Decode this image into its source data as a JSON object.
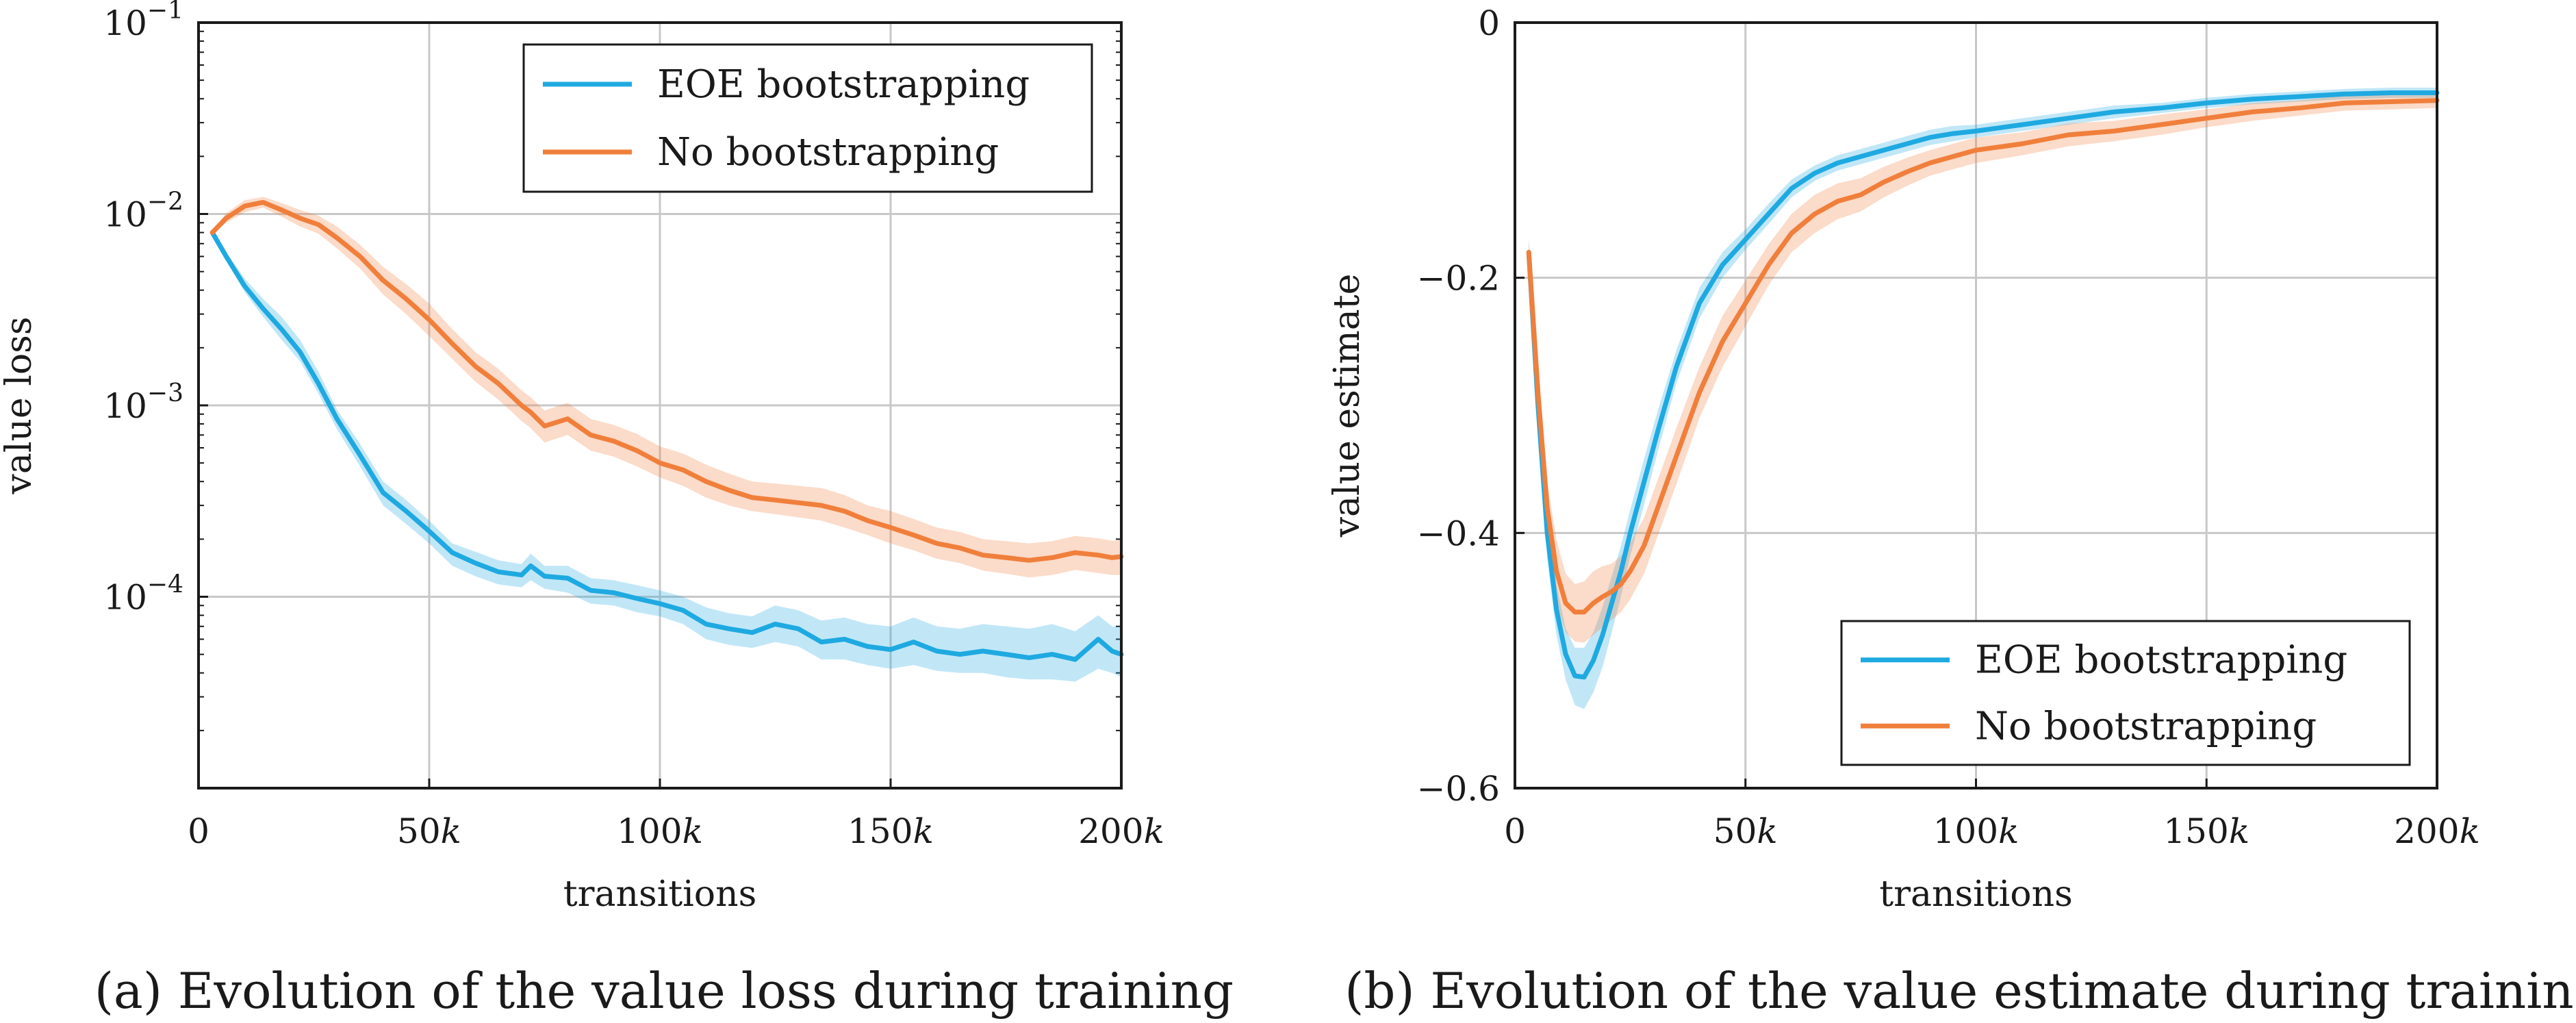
{
  "chart_data": [
    {
      "type": "line",
      "panel": "a",
      "caption": "(a) Evolution of the value loss during training",
      "xlabel": "transitions",
      "ylabel": "value loss",
      "yscale": "log",
      "xlim": [
        0,
        200000
      ],
      "ylim_exp": [
        -5,
        -1
      ],
      "x_ticks": [
        {
          "value": 0,
          "base": "0",
          "suffix": ""
        },
        {
          "value": 50000,
          "base": "50",
          "suffix": "k"
        },
        {
          "value": 100000,
          "base": "100",
          "suffix": "k"
        },
        {
          "value": 150000,
          "base": "150",
          "suffix": "k"
        },
        {
          "value": 200000,
          "base": "200",
          "suffix": "k"
        }
      ],
      "y_ticks": [
        {
          "exp": -1,
          "base": "10",
          "sup": "−1"
        },
        {
          "exp": -2,
          "base": "10",
          "sup": "−2"
        },
        {
          "exp": -3,
          "base": "10",
          "sup": "−3"
        },
        {
          "exp": -4,
          "base": "10",
          "sup": "−4"
        }
      ],
      "grid": true,
      "legend_position": "top-right",
      "x": [
        3000,
        6000,
        10000,
        14000,
        18000,
        22000,
        26000,
        30000,
        35000,
        40000,
        45000,
        50000,
        55000,
        60000,
        65000,
        70000,
        72000,
        75000,
        80000,
        85000,
        90000,
        95000,
        100000,
        105000,
        110000,
        115000,
        120000,
        125000,
        130000,
        135000,
        140000,
        145000,
        150000,
        155000,
        160000,
        165000,
        170000,
        175000,
        180000,
        185000,
        190000,
        195000,
        198000,
        200000
      ],
      "series": [
        {
          "name": "EOE bootstrapping",
          "color": "#1fa9e1",
          "values": [
            0.008,
            0.006,
            0.0042,
            0.0032,
            0.0025,
            0.0019,
            0.0013,
            0.00085,
            0.00055,
            0.00035,
            0.00028,
            0.00022,
            0.00017,
            0.00015,
            0.000135,
            0.00013,
            0.000145,
            0.000128,
            0.000125,
            0.000108,
            0.000105,
            9.8e-05,
            9.2e-05,
            8.5e-05,
            7.2e-05,
            6.8e-05,
            6.5e-05,
            7.2e-05,
            6.8e-05,
            5.8e-05,
            6e-05,
            5.5e-05,
            5.3e-05,
            5.8e-05,
            5.2e-05,
            5e-05,
            5.2e-05,
            5e-05,
            4.8e-05,
            5e-05,
            4.7e-05,
            6e-05,
            5.2e-05,
            5e-05
          ],
          "lower": [
            0.0078,
            0.0057,
            0.0039,
            0.0029,
            0.0022,
            0.0017,
            0.00115,
            0.00075,
            0.00048,
            0.0003,
            0.00024,
            0.00019,
            0.000145,
            0.000128,
            0.000116,
            0.000112,
            0.000122,
            0.00011,
            0.000105,
            9.2e-05,
            9e-05,
            8.3e-05,
            7.9e-05,
            7.2e-05,
            6e-05,
            5.6e-05,
            5.4e-05,
            5.8e-05,
            5.5e-05,
            4.7e-05,
            4.7e-05,
            4.4e-05,
            4.2e-05,
            4.4e-05,
            4.1e-05,
            4e-05,
            4e-05,
            3.8e-05,
            3.7e-05,
            3.7e-05,
            3.6e-05,
            4.2e-05,
            4e-05,
            3.8e-05
          ],
          "upper": [
            0.0082,
            0.0063,
            0.0046,
            0.0036,
            0.0029,
            0.0022,
            0.0015,
            0.00095,
            0.00063,
            0.0004,
            0.00032,
            0.00025,
            0.00019,
            0.000172,
            0.000155,
            0.000148,
            0.000168,
            0.000145,
            0.000145,
            0.000125,
            0.000122,
            0.000115,
            0.000108,
            0.0001,
            8.8e-05,
            8.2e-05,
            7.9e-05,
            9e-05,
            8.5e-05,
            7.5e-05,
            7.8e-05,
            7.2e-05,
            7e-05,
            7.8e-05,
            7e-05,
            6.8e-05,
            7.2e-05,
            7e-05,
            6.8e-05,
            7.2e-05,
            6.6e-05,
            8e-05,
            7e-05,
            7e-05
          ]
        },
        {
          "name": "No bootstrapping",
          "color": "#f07f3c",
          "values": [
            0.008,
            0.0095,
            0.011,
            0.0115,
            0.0105,
            0.0095,
            0.0088,
            0.0075,
            0.006,
            0.0045,
            0.0036,
            0.0028,
            0.0021,
            0.0016,
            0.0013,
            0.001,
            0.00092,
            0.00078,
            0.00085,
            0.0007,
            0.00065,
            0.00058,
            0.0005,
            0.00046,
            0.0004,
            0.00036,
            0.00033,
            0.00032,
            0.00031,
            0.0003,
            0.00028,
            0.00025,
            0.00023,
            0.00021,
            0.00019,
            0.00018,
            0.000165,
            0.00016,
            0.000155,
            0.00016,
            0.00017,
            0.000165,
            0.00016,
            0.000162
          ],
          "lower": [
            0.0078,
            0.009,
            0.0102,
            0.0108,
            0.0097,
            0.0086,
            0.0079,
            0.0066,
            0.0052,
            0.0038,
            0.003,
            0.0023,
            0.00175,
            0.00133,
            0.00107,
            0.00083,
            0.00076,
            0.00064,
            0.0007,
            0.00058,
            0.00054,
            0.00048,
            0.00042,
            0.00038,
            0.00033,
            0.0003,
            0.00028,
            0.00027,
            0.00026,
            0.00025,
            0.00023,
            0.00021,
            0.00019,
            0.000175,
            0.000158,
            0.00015,
            0.000137,
            0.000132,
            0.000126,
            0.00013,
            0.000138,
            0.000133,
            0.00013,
            0.00013
          ],
          "upper": [
            0.0082,
            0.0101,
            0.0118,
            0.0123,
            0.0114,
            0.0105,
            0.0098,
            0.0086,
            0.0069,
            0.0053,
            0.0043,
            0.0034,
            0.0025,
            0.0019,
            0.00155,
            0.0012,
            0.0011,
            0.00094,
            0.00103,
            0.00085,
            0.00079,
            0.00071,
            0.00061,
            0.00056,
            0.00049,
            0.00044,
            0.0004,
            0.00039,
            0.00038,
            0.00037,
            0.00034,
            0.0003,
            0.00028,
            0.000255,
            0.00023,
            0.000218,
            0.0002,
            0.000195,
            0.00019,
            0.000195,
            0.000208,
            0.000202,
            0.000196,
            0.000198
          ]
        }
      ]
    },
    {
      "type": "line",
      "panel": "b",
      "caption": "(b) Evolution of the value estimate during training",
      "xlabel": "transitions",
      "ylabel": "value estimate",
      "yscale": "linear",
      "xlim": [
        0,
        200000
      ],
      "ylim": [
        -0.6,
        0
      ],
      "x_ticks": [
        {
          "value": 0,
          "base": "0",
          "suffix": ""
        },
        {
          "value": 50000,
          "base": "50",
          "suffix": "k"
        },
        {
          "value": 100000,
          "base": "100",
          "suffix": "k"
        },
        {
          "value": 150000,
          "base": "150",
          "suffix": "k"
        },
        {
          "value": 200000,
          "base": "200",
          "suffix": "k"
        }
      ],
      "y_ticks": [
        {
          "value": 0,
          "label": "0"
        },
        {
          "value": -0.2,
          "label": "−0.2"
        },
        {
          "value": -0.4,
          "label": "−0.4"
        },
        {
          "value": -0.6,
          "label": "−0.6"
        }
      ],
      "grid": true,
      "legend_position": "bottom-right",
      "x": [
        3000,
        5000,
        7000,
        9000,
        11000,
        13000,
        15000,
        17000,
        19000,
        21000,
        23000,
        25000,
        28000,
        31000,
        35000,
        40000,
        45000,
        50000,
        55000,
        60000,
        65000,
        70000,
        75000,
        80000,
        85000,
        90000,
        95000,
        100000,
        110000,
        120000,
        130000,
        140000,
        150000,
        160000,
        170000,
        180000,
        190000,
        200000
      ],
      "series": [
        {
          "name": "EOE bootstrapping",
          "color": "#1fa9e1",
          "values": [
            -0.18,
            -0.3,
            -0.4,
            -0.46,
            -0.495,
            -0.512,
            -0.513,
            -0.5,
            -0.48,
            -0.455,
            -0.43,
            -0.4,
            -0.36,
            -0.32,
            -0.27,
            -0.22,
            -0.19,
            -0.17,
            -0.15,
            -0.13,
            -0.118,
            -0.11,
            -0.105,
            -0.1,
            -0.095,
            -0.09,
            -0.087,
            -0.085,
            -0.08,
            -0.075,
            -0.07,
            -0.067,
            -0.063,
            -0.06,
            -0.058,
            -0.056,
            -0.055,
            -0.055
          ],
          "lower": [
            -0.19,
            -0.32,
            -0.42,
            -0.48,
            -0.515,
            -0.535,
            -0.538,
            -0.525,
            -0.505,
            -0.478,
            -0.45,
            -0.418,
            -0.378,
            -0.336,
            -0.283,
            -0.232,
            -0.2,
            -0.178,
            -0.158,
            -0.137,
            -0.124,
            -0.116,
            -0.111,
            -0.106,
            -0.101,
            -0.096,
            -0.093,
            -0.09,
            -0.085,
            -0.08,
            -0.075,
            -0.071,
            -0.067,
            -0.064,
            -0.062,
            -0.06,
            -0.059,
            -0.059
          ],
          "upper": [
            -0.17,
            -0.28,
            -0.38,
            -0.44,
            -0.475,
            -0.49,
            -0.49,
            -0.478,
            -0.458,
            -0.434,
            -0.41,
            -0.382,
            -0.342,
            -0.304,
            -0.257,
            -0.208,
            -0.18,
            -0.162,
            -0.142,
            -0.123,
            -0.112,
            -0.104,
            -0.099,
            -0.094,
            -0.089,
            -0.084,
            -0.081,
            -0.08,
            -0.075,
            -0.07,
            -0.065,
            -0.063,
            -0.059,
            -0.056,
            -0.054,
            -0.052,
            -0.051,
            -0.051
          ]
        },
        {
          "name": "No bootstrapping",
          "color": "#f07f3c",
          "values": [
            -0.18,
            -0.29,
            -0.38,
            -0.43,
            -0.455,
            -0.462,
            -0.462,
            -0.455,
            -0.45,
            -0.446,
            -0.44,
            -0.43,
            -0.41,
            -0.38,
            -0.34,
            -0.29,
            -0.25,
            -0.22,
            -0.19,
            -0.165,
            -0.15,
            -0.14,
            -0.135,
            -0.125,
            -0.117,
            -0.11,
            -0.105,
            -0.1,
            -0.095,
            -0.088,
            -0.085,
            -0.08,
            -0.075,
            -0.07,
            -0.067,
            -0.063,
            -0.062,
            -0.061
          ],
          "lower": [
            -0.19,
            -0.31,
            -0.4,
            -0.455,
            -0.478,
            -0.485,
            -0.486,
            -0.48,
            -0.474,
            -0.468,
            -0.462,
            -0.452,
            -0.432,
            -0.402,
            -0.362,
            -0.31,
            -0.27,
            -0.238,
            -0.206,
            -0.18,
            -0.165,
            -0.154,
            -0.148,
            -0.137,
            -0.128,
            -0.12,
            -0.115,
            -0.11,
            -0.104,
            -0.097,
            -0.093,
            -0.088,
            -0.082,
            -0.077,
            -0.073,
            -0.069,
            -0.068,
            -0.067
          ],
          "upper": [
            -0.17,
            -0.27,
            -0.36,
            -0.405,
            -0.432,
            -0.44,
            -0.438,
            -0.43,
            -0.426,
            -0.424,
            -0.418,
            -0.408,
            -0.388,
            -0.358,
            -0.318,
            -0.27,
            -0.23,
            -0.202,
            -0.174,
            -0.15,
            -0.135,
            -0.126,
            -0.122,
            -0.113,
            -0.106,
            -0.1,
            -0.095,
            -0.09,
            -0.086,
            -0.079,
            -0.077,
            -0.072,
            -0.068,
            -0.063,
            -0.061,
            -0.057,
            -0.056,
            -0.055
          ]
        }
      ]
    }
  ]
}
